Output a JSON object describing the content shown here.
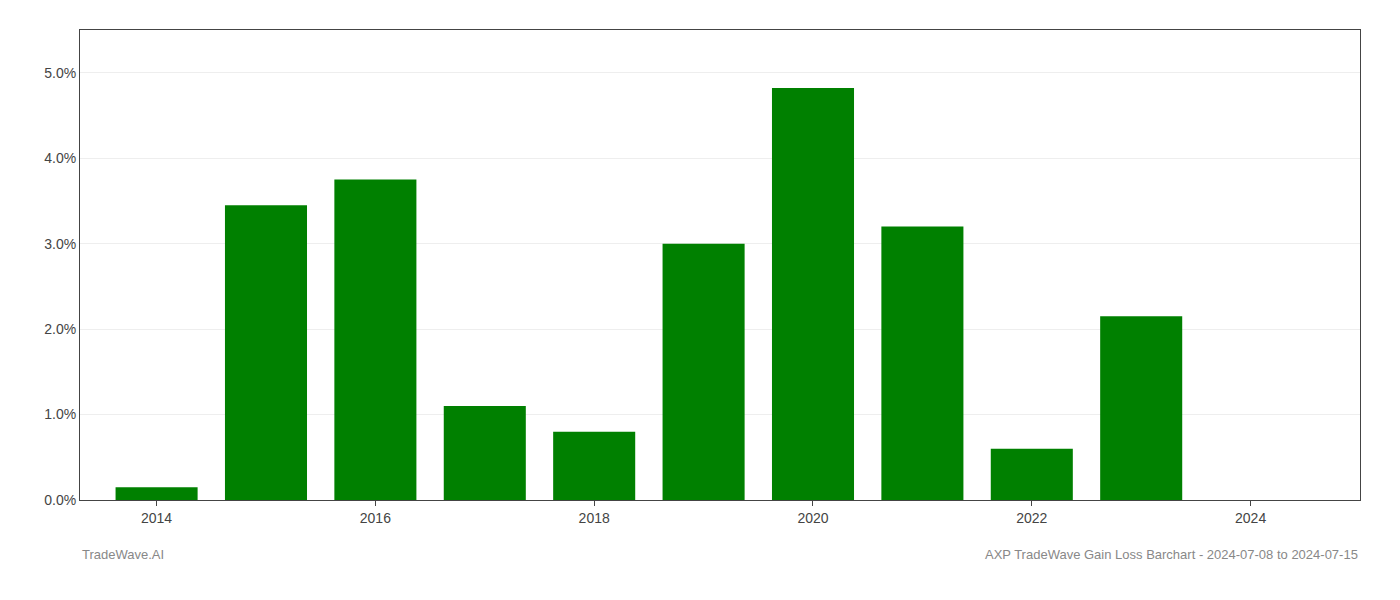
{
  "chart_data": {
    "type": "bar",
    "title": "AXP TradeWave Gain Loss Barchart - 2024-07-08 to 2024-07-15",
    "annotations": [
      "TradeWave.AI"
    ],
    "x": [
      2014,
      2015,
      2016,
      2017,
      2018,
      2019,
      2020,
      2021,
      2022,
      2023,
      2024
    ],
    "values": [
      0.0015,
      0.0345,
      0.0375,
      0.011,
      0.008,
      0.03,
      0.0482,
      0.032,
      0.006,
      0.0215,
      0.0
    ],
    "color": "#008000",
    "xlim": [
      2013.3,
      2025.0
    ],
    "xticks": [
      2014,
      2016,
      2018,
      2020,
      2022,
      2024
    ],
    "ylim": [
      0,
      0.055
    ],
    "yticks": [
      {
        "value": 0.0,
        "label": "0.0%"
      },
      {
        "value": 0.01,
        "label": "1.0%"
      },
      {
        "value": 0.02,
        "label": "2.0%"
      },
      {
        "value": 0.03,
        "label": "3.0%"
      },
      {
        "value": 0.04,
        "label": "4.0%"
      },
      {
        "value": 0.05,
        "label": "5.0%"
      }
    ],
    "grid": true
  }
}
